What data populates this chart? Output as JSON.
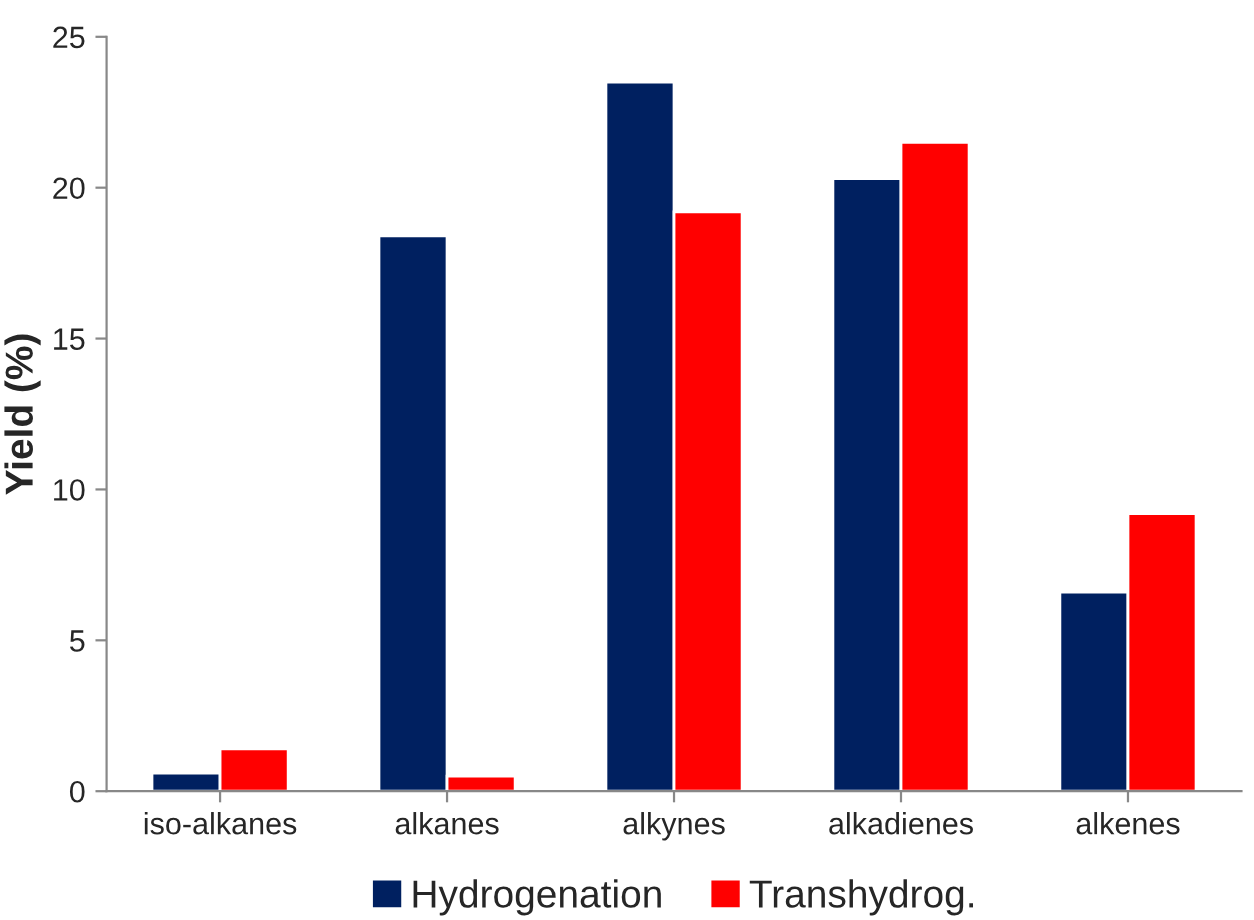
{
  "chart_data": {
    "type": "bar",
    "ylabel": "Yield (%)",
    "categories": [
      "iso-alkanes",
      "alkanes",
      "alkynes",
      "alkadienes",
      "alkenes"
    ],
    "series": [
      {
        "name": "Hydrogenation",
        "color": "#002060",
        "values": [
          0.6,
          18.4,
          23.5,
          20.3,
          6.6
        ]
      },
      {
        "name": "Transhydrog.",
        "color": "#ff0000",
        "values": [
          1.4,
          0.5,
          19.2,
          21.5,
          9.2
        ]
      }
    ],
    "ylim": [
      0,
      25
    ],
    "yticks": [
      0,
      5,
      10,
      15,
      20,
      25
    ],
    "grid": false,
    "legend": "bottom"
  }
}
